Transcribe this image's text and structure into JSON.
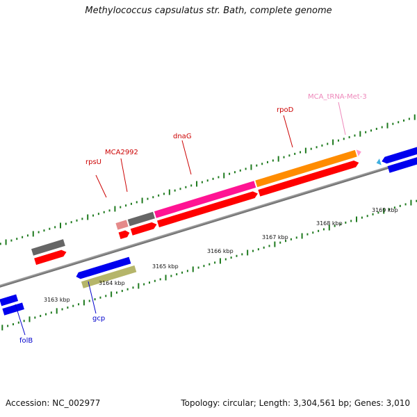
{
  "title": "Methylococcus capsulatus str. Bath, complete genome",
  "footer": {
    "accession": "Accession: NC_002977",
    "summary": "Topology: circular; Length: 3,304,561 bp; Genes: 3,010"
  },
  "scale_labels": [
    "3163 kbp",
    "3164 kbp",
    "3165 kbp",
    "3166 kbp",
    "3167 kbp",
    "3168 kbp",
    "3169 kbp"
  ],
  "gene_labels": {
    "rpsU": "rpsU",
    "mca2992": "MCA2992",
    "dnaG": "dnaG",
    "rpoD": "rpoD",
    "trna": "MCA_tRNA-Met-3",
    "gcp": "gcp",
    "folB": "folB"
  },
  "colors": {
    "gene_forward_top": "#555555",
    "cds": "#ff0000",
    "dnaG": "#ff1493",
    "rpoD": "#ff8c00",
    "trna": "#ff99cc",
    "reverse": "#0000ee",
    "gcp": "#b5b56a",
    "rpsU": "#e08080",
    "backbone": "#808080",
    "tick": "#1e7a1e",
    "label_red": "#cc0000",
    "label_blue": "#0000cc",
    "label_pink": "#ee88bb",
    "cyan_feature": "#40b0e0"
  }
}
